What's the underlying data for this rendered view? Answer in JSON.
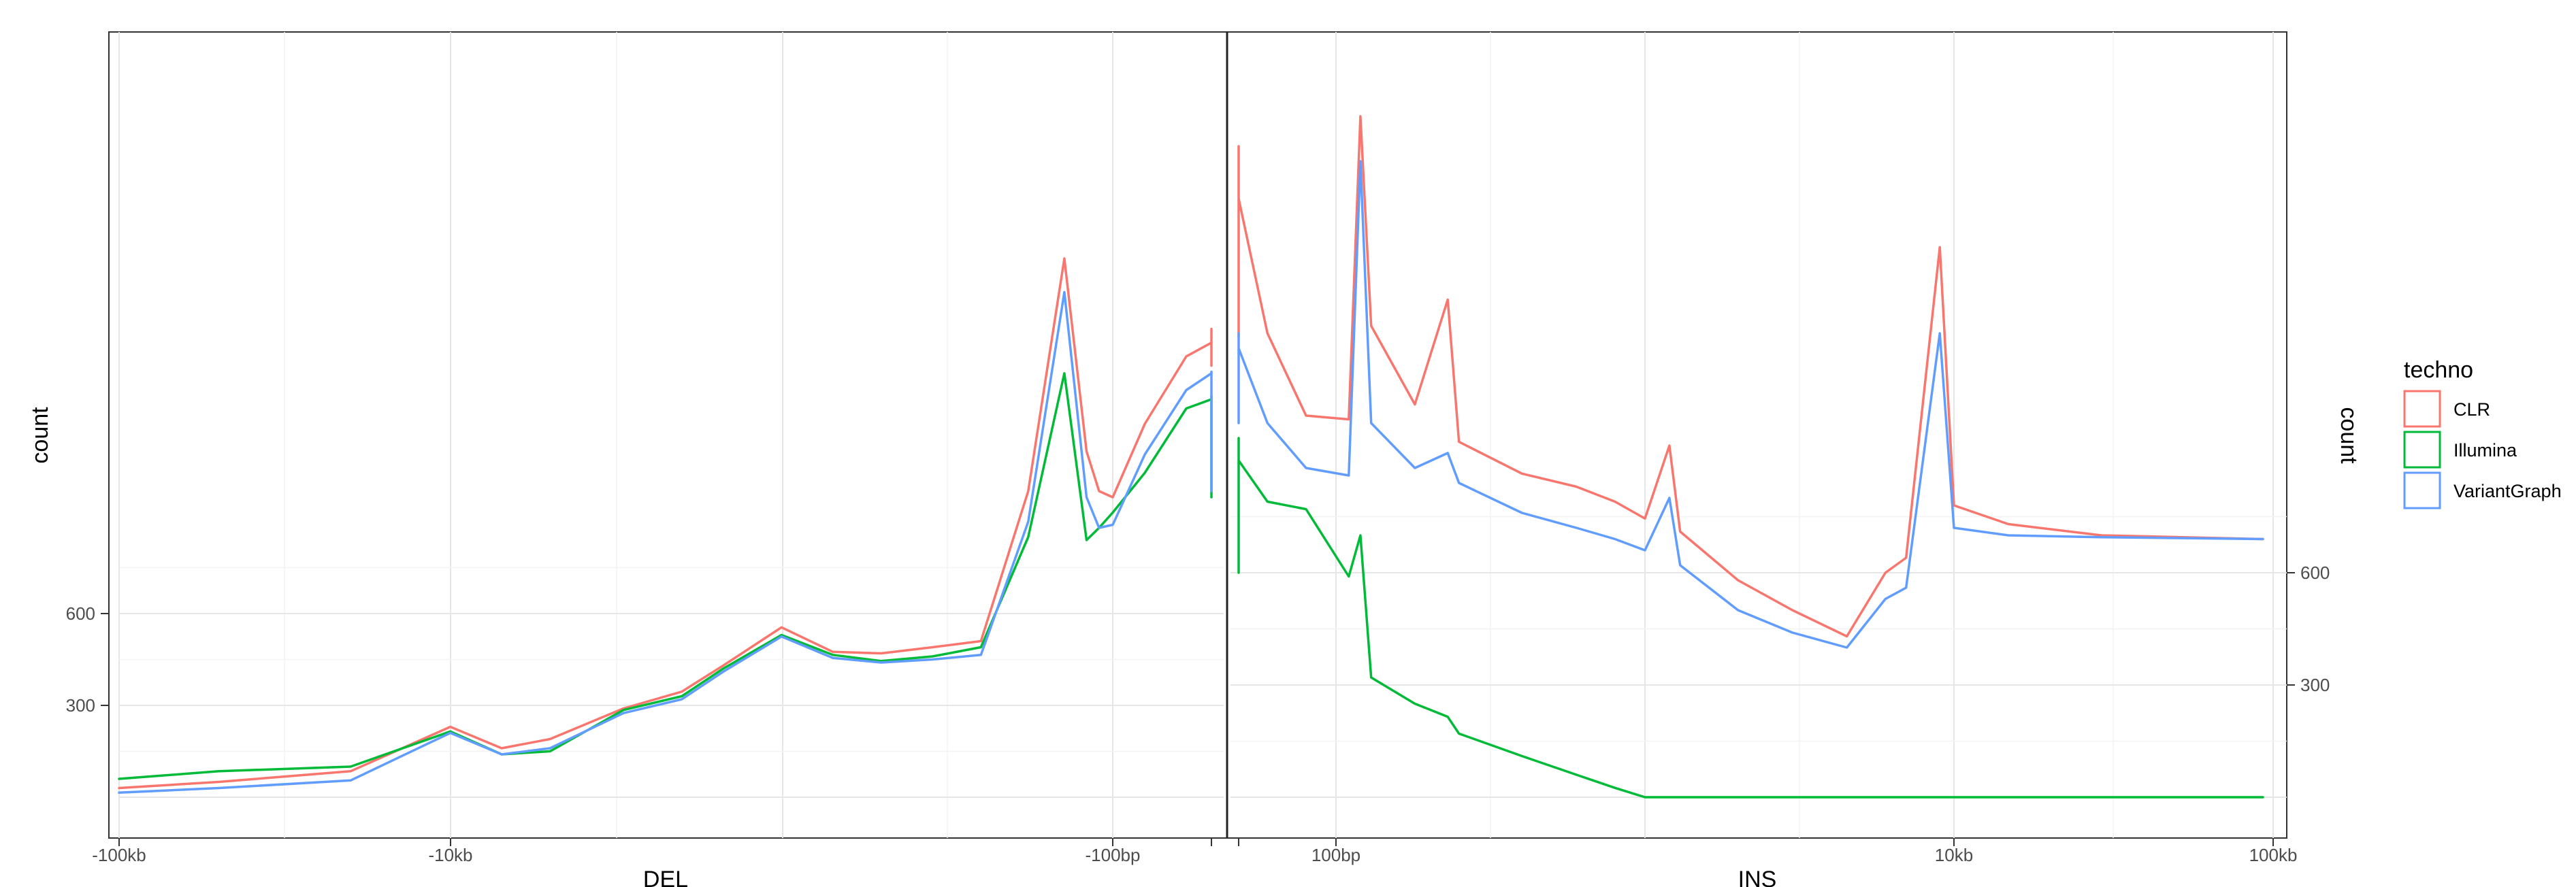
{
  "chart_data": {
    "type": "line",
    "y_label": "count",
    "y_ticks": [
      "300",
      "600"
    ],
    "grid": true,
    "legend": {
      "title": "techno",
      "position": "right",
      "entries": [
        {
          "name": "CLR",
          "color": "#F8766D"
        },
        {
          "name": "Illumina",
          "color": "#00BA38"
        },
        {
          "name": "VariantGraph",
          "color": "#619CFF"
        }
      ]
    },
    "panels": [
      {
        "x_label": "DEL",
        "x_scale": "log (negative SV length)",
        "x_ticks": [
          "-100kb",
          "-10kb",
          "-100bp"
        ],
        "y_ticks": [
          "300",
          "600"
        ],
        "series": [
          {
            "name": "CLR",
            "points": [
              [
                -100000,
                30
              ],
              [
                -50000,
                50
              ],
              [
                -20000,
                85
              ],
              [
                -10000,
                230
              ],
              [
                -7000,
                160
              ],
              [
                -5000,
                190
              ],
              [
                -3000,
                290
              ],
              [
                -2000,
                345
              ],
              [
                -1500,
                430
              ],
              [
                -1000,
                555
              ],
              [
                -700,
                475
              ],
              [
                -500,
                470
              ],
              [
                -350,
                490
              ],
              [
                -250,
                510
              ],
              [
                -180,
                1000
              ],
              [
                -140,
                1760
              ],
              [
                -120,
                1130
              ],
              [
                -110,
                1000
              ],
              [
                -100,
                980
              ],
              [
                -80,
                1220
              ],
              [
                -60,
                1440
              ],
              [
                -50,
                1485
              ],
              [
                -45,
                1530
              ],
              [
                -40,
                1410
              ]
            ]
          },
          {
            "name": "Illumina",
            "points": [
              [
                -100000,
                60
              ],
              [
                -50000,
                85
              ],
              [
                -20000,
                100
              ],
              [
                -10000,
                215
              ],
              [
                -7000,
                140
              ],
              [
                -5000,
                150
              ],
              [
                -3000,
                285
              ],
              [
                -2000,
                330
              ],
              [
                -1500,
                420
              ],
              [
                -1000,
                530
              ],
              [
                -700,
                465
              ],
              [
                -500,
                445
              ],
              [
                -350,
                460
              ],
              [
                -250,
                490
              ],
              [
                -180,
                850
              ],
              [
                -140,
                1385
              ],
              [
                -120,
                840
              ],
              [
                -110,
                880
              ],
              [
                -100,
                930
              ],
              [
                -80,
                1060
              ],
              [
                -60,
                1270
              ],
              [
                -50,
                1300
              ],
              [
                -45,
                1310
              ],
              [
                -40,
                980
              ]
            ]
          },
          {
            "name": "VariantGraph",
            "points": [
              [
                -100000,
                15
              ],
              [
                -50000,
                30
              ],
              [
                -20000,
                55
              ],
              [
                -10000,
                210
              ],
              [
                -7000,
                140
              ],
              [
                -5000,
                160
              ],
              [
                -3000,
                275
              ],
              [
                -2000,
                320
              ],
              [
                -1500,
                410
              ],
              [
                -1000,
                525
              ],
              [
                -700,
                455
              ],
              [
                -500,
                440
              ],
              [
                -350,
                450
              ],
              [
                -250,
                465
              ],
              [
                -180,
                900
              ],
              [
                -140,
                1650
              ],
              [
                -120,
                980
              ],
              [
                -110,
                880
              ],
              [
                -100,
                890
              ],
              [
                -80,
                1120
              ],
              [
                -60,
                1330
              ],
              [
                -50,
                1385
              ],
              [
                -45,
                1390
              ],
              [
                -40,
                1000
              ]
            ]
          }
        ]
      },
      {
        "x_label": "INS",
        "x_scale": "log (SV length)",
        "x_ticks": [
          "100bp",
          "10kb",
          "100kb"
        ],
        "y_ticks": [
          "300",
          "600"
        ],
        "series": [
          {
            "name": "CLR",
            "points": [
              [
                35,
                1230
              ],
              [
                40,
                1740
              ],
              [
                45,
                1600
              ],
              [
                60,
                1240
              ],
              [
                80,
                1020
              ],
              [
                110,
                1010
              ],
              [
                120,
                1820
              ],
              [
                130,
                1260
              ],
              [
                180,
                1050
              ],
              [
                230,
                1330
              ],
              [
                250,
                950
              ],
              [
                400,
                865
              ],
              [
                600,
                830
              ],
              [
                800,
                790
              ],
              [
                1000,
                745
              ],
              [
                1200,
                940
              ],
              [
                1300,
                710
              ],
              [
                2000,
                580
              ],
              [
                3000,
                500
              ],
              [
                4500,
                430
              ],
              [
                6000,
                600
              ],
              [
                7000,
                640
              ],
              [
                9000,
                1470
              ],
              [
                10000,
                780
              ],
              [
                15000,
                730
              ],
              [
                30000,
                700
              ],
              [
                100000,
                690
              ]
            ]
          },
          {
            "name": "Illumina",
            "points": [
              [
                35,
                600
              ],
              [
                40,
                960
              ],
              [
                45,
                900
              ],
              [
                60,
                790
              ],
              [
                80,
                770
              ],
              [
                110,
                590
              ],
              [
                120,
                700
              ],
              [
                130,
                320
              ],
              [
                180,
                250
              ],
              [
                230,
                215
              ],
              [
                250,
                170
              ],
              [
                400,
                110
              ],
              [
                600,
                60
              ],
              [
                800,
                25
              ],
              [
                1000,
                0
              ],
              [
                2000,
                0
              ],
              [
                5000,
                0
              ],
              [
                10000,
                0
              ],
              [
                100000,
                0
              ]
            ]
          },
          {
            "name": "VariantGraph",
            "points": [
              [
                35,
                1000
              ],
              [
                40,
                1240
              ],
              [
                45,
                1200
              ],
              [
                60,
                1000
              ],
              [
                80,
                880
              ],
              [
                110,
                860
              ],
              [
                120,
                1700
              ],
              [
                130,
                1000
              ],
              [
                180,
                880
              ],
              [
                230,
                920
              ],
              [
                250,
                840
              ],
              [
                400,
                760
              ],
              [
                600,
                720
              ],
              [
                800,
                690
              ],
              [
                1000,
                660
              ],
              [
                1200,
                800
              ],
              [
                1300,
                620
              ],
              [
                2000,
                500
              ],
              [
                3000,
                440
              ],
              [
                4500,
                400
              ],
              [
                6000,
                530
              ],
              [
                7000,
                560
              ],
              [
                9000,
                1240
              ],
              [
                10000,
                720
              ],
              [
                15000,
                700
              ],
              [
                30000,
                695
              ],
              [
                100000,
                690
              ]
            ]
          }
        ]
      }
    ]
  }
}
